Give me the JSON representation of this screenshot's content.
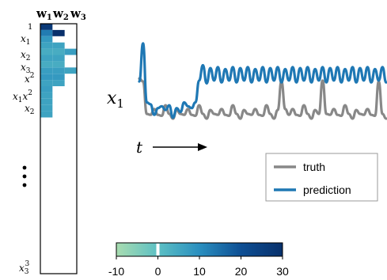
{
  "chart_data": [
    {
      "type": "heatmap",
      "columns": [
        "w",
        "w",
        "w"
      ],
      "column_subscripts": [
        "1",
        "2",
        "3"
      ],
      "row_labels": [
        "1",
        "x",
        "x",
        "x",
        "x",
        "x",
        "x"
      ],
      "row_label_subscripts": [
        "",
        "1",
        "2",
        "3",
        "",
        "",
        "2"
      ],
      "row_label_superscripts": [
        "",
        "",
        "",
        "",
        "2",
        "2",
        ""
      ],
      "row_label_first": [
        "",
        "",
        "",
        "",
        "",
        "x",
        ""
      ],
      "row_label_first_subscripts": [
        "",
        "",
        "",
        "",
        "",
        "1",
        ""
      ],
      "ellipsis": "•\n•\n•",
      "last_row_label": "x",
      "last_row_label_subscript": "3",
      "last_row_label_superscript": "3",
      "n_rows": 20,
      "cells": [
        [
          1,
          0,
          27
        ],
        [
          2,
          0,
          13
        ],
        [
          2,
          1,
          30
        ],
        [
          3,
          0,
          8
        ],
        [
          4,
          0,
          6
        ],
        [
          4,
          1,
          6
        ],
        [
          5,
          0,
          4
        ],
        [
          5,
          1,
          4
        ],
        [
          5,
          2,
          7
        ],
        [
          6,
          0,
          6
        ],
        [
          6,
          1,
          6
        ],
        [
          7,
          0,
          4
        ],
        [
          7,
          1,
          4
        ],
        [
          8,
          0,
          7
        ],
        [
          8,
          1,
          7
        ],
        [
          8,
          2,
          6
        ],
        [
          9,
          0,
          8
        ],
        [
          9,
          1,
          8
        ],
        [
          10,
          0,
          6
        ],
        [
          10,
          1,
          6
        ],
        [
          11,
          0,
          7
        ],
        [
          12,
          0,
          6
        ],
        [
          13,
          0,
          6
        ],
        [
          14,
          0,
          6
        ],
        [
          15,
          0,
          6
        ]
      ],
      "colorbar": {
        "ticks": [
          "-10",
          "0",
          "10",
          "20",
          "30"
        ],
        "range": [
          -10,
          30
        ],
        "colors": [
          "#a8dcb0",
          "#5cc0c4",
          "#2a8fbf",
          "#0e4f94",
          "#08306b"
        ]
      }
    },
    {
      "type": "line",
      "ylabel": "x",
      "ylabel_subscript": "1",
      "xlabel": "t",
      "legend_position": "bottom-right",
      "series": [
        {
          "name": "truth",
          "color": "#888888",
          "values": [
            0.35,
            0.2,
            -1.5,
            -1.55,
            -1.25,
            -1.55,
            -1.6,
            -1.05,
            -1.5,
            -1.75,
            -1.3,
            -1.5,
            -1.55,
            -1.25,
            -1.55,
            -1.6,
            -1.05,
            -1.5,
            -1.75,
            -1.3,
            -1.5,
            -1.55,
            -1.25,
            -1.55,
            -1.6,
            -1.05,
            -1.5,
            -1.75,
            -1.3,
            -1.5,
            -1.55,
            -1.25,
            -1.55,
            -1.6,
            -1.05,
            -1.5,
            -1.75,
            -1.3,
            0.2,
            -1.25,
            -1.55,
            -1.25,
            -1.55,
            -1.6,
            -1.05,
            -1.5,
            -1.75,
            -1.3,
            -1.5,
            0.25,
            -1.5,
            -1.55,
            -1.25,
            -1.55,
            -1.6,
            -1.05,
            -1.5,
            -1.75,
            -1.3,
            -1.5,
            -1.55,
            -1.25,
            -1.55,
            -1.6,
            0.2,
            -1.5,
            -1.75
          ]
        },
        {
          "name": "prediction",
          "color": "#1f78b4",
          "values": [
            0.2,
            2.2,
            -0.9,
            -1.0,
            -1.55,
            -1.2,
            -1.1,
            -1.3,
            -1.05,
            -1.7,
            -1.2,
            -1.4,
            -0.9,
            -1.1,
            -1.2,
            -0.9,
            0.25,
            1.05,
            0.1,
            0.9,
            0.25,
            0.95,
            0.15,
            0.85,
            0.25,
            0.95,
            0.15,
            0.9,
            0.25,
            0.95,
            0.15,
            0.85,
            0.25,
            0.95,
            0.15,
            0.9,
            0.25,
            0.95,
            0.15,
            0.85,
            0.25,
            0.95,
            0.15,
            0.9,
            0.25,
            0.95,
            0.15,
            0.85,
            0.25,
            0.95,
            0.15,
            0.9,
            0.25,
            0.95,
            0.15,
            0.85,
            0.25,
            0.95,
            0.15,
            0.9,
            0.25,
            0.95,
            0.15,
            0.85,
            0.25,
            0.95,
            0.15
          ]
        }
      ]
    }
  ]
}
